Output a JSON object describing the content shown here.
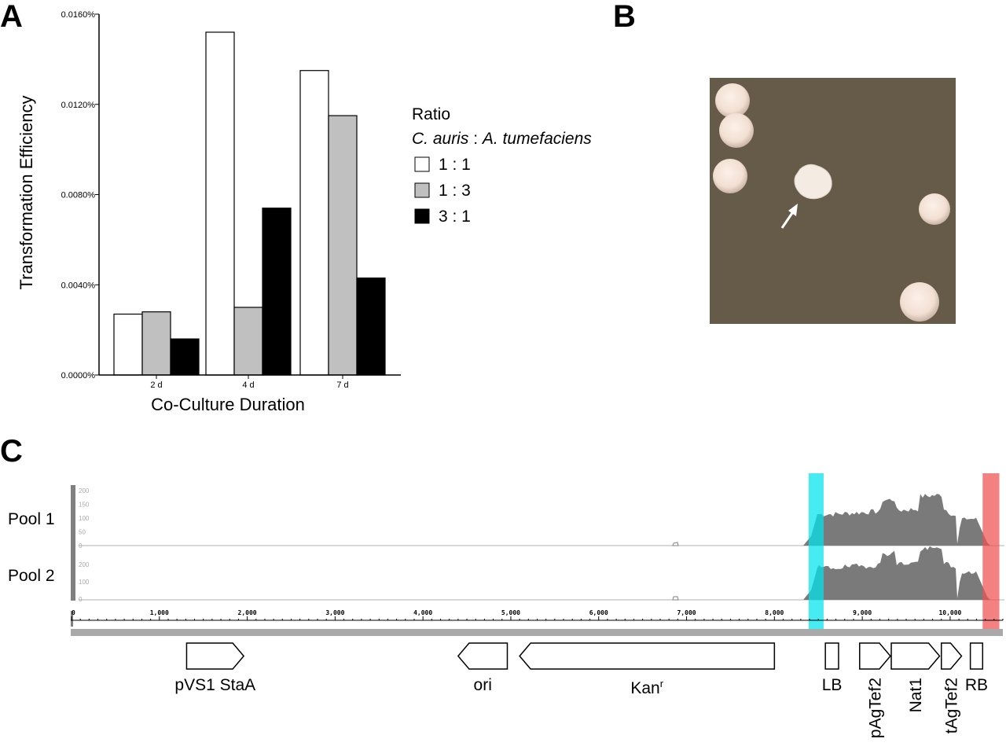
{
  "panels": {
    "a": "A",
    "b": "B",
    "c": "C"
  },
  "chart_data": [
    {
      "type": "bar",
      "categories": [
        "2 d",
        "4 d",
        "7 d"
      ],
      "series": [
        {
          "name": "1 : 1",
          "values": [
            0.0027,
            0.0152,
            0.0135
          ],
          "color": "#ffffff"
        },
        {
          "name": "1 : 3",
          "values": [
            0.0028,
            0.003,
            0.0115
          ],
          "color": "#c0c0c0"
        },
        {
          "name": "3 : 1",
          "values": [
            0.0016,
            0.0074,
            0.0043
          ],
          "color": "#000000"
        }
      ],
      "ylim": [
        0,
        0.016
      ],
      "yticks": [
        "0.0000%",
        "0.0040%",
        "0.0080%",
        "0.0120%",
        "0.0160%"
      ],
      "xlabel": "Co-Culture Duration",
      "ylabel": "Transformation Efficiency",
      "legend": {
        "title": "Ratio",
        "subtitle_a": "C. auris",
        "subtitle_sep": " : ",
        "subtitle_b": "A. tumefaciens",
        "placement": "right"
      },
      "grid": false
    },
    {
      "type": "area",
      "tracks": [
        "Pool 1",
        "Pool 2"
      ],
      "coverage_ticks": [
        "200",
        "150",
        "100",
        "50",
        "0"
      ],
      "coverage_ticks_pool2": [
        "200",
        "100",
        "0"
      ],
      "x_range": [
        0,
        10600
      ],
      "ruler_ticks": [
        "0",
        "1,000",
        "2,000",
        "3,000",
        "4,000",
        "5,000",
        "6,000",
        "7,000",
        "8,000",
        "9,000",
        "10,000"
      ],
      "highlights": [
        {
          "name": "LB region",
          "start": 8390,
          "end": 8560,
          "color": "#00e5ee"
        },
        {
          "name": "RB region",
          "start": 10370,
          "end": 10560,
          "color": "#f05050"
        }
      ],
      "features": [
        {
          "label": "pVS1 StaA",
          "start": 1310,
          "end": 1960,
          "dir": "right"
        },
        {
          "label": "ori",
          "start": 4400,
          "end": 4960,
          "dir": "left"
        },
        {
          "label": "Kanr",
          "start": 5100,
          "end": 8000,
          "dir": "left"
        },
        {
          "label": "LB",
          "start": 8580,
          "end": 8730,
          "dir": "none"
        },
        {
          "label": "pAgTef2",
          "start": 8970,
          "end": 9320,
          "dir": "right"
        },
        {
          "label": "Nat1",
          "start": 9330,
          "end": 9880,
          "dir": "right"
        },
        {
          "label": "tAgTef2",
          "start": 9900,
          "end": 10130,
          "dir": "right"
        },
        {
          "label": "RB",
          "start": 10230,
          "end": 10370,
          "dir": "none"
        }
      ]
    }
  ],
  "feature_labels": {
    "kan_base": "Kan",
    "kan_sup": "r"
  }
}
